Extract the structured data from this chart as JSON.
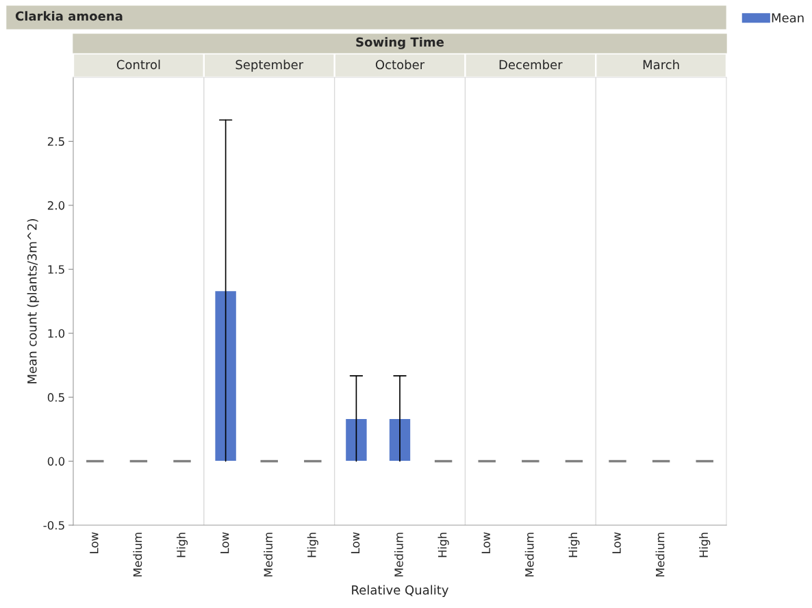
{
  "chart_data": {
    "type": "bar",
    "title": "Clarkia amoena",
    "subtitle": "Sowing Time",
    "annotations": [
      "Control",
      "September",
      "October",
      "December",
      "March"
    ],
    "xlabel": "Relative Quality",
    "ylabel": "Mean count (plants/3m^2)",
    "categories": [
      "Low",
      "Medium",
      "High",
      "Low",
      "Medium",
      "High",
      "Low",
      "Medium",
      "High",
      "Low",
      "Medium",
      "High",
      "Low",
      "Medium",
      "High"
    ],
    "series": [
      {
        "name": "Mean",
        "color": "#5377c9",
        "colors": [
          "#808080",
          "#808080",
          "#808080",
          "#5377c9",
          "#808080",
          "#808080",
          "#5377c9",
          "#5377c9",
          "#808080",
          "#808080",
          "#808080",
          "#808080",
          "#808080",
          "#808080",
          "#808080"
        ],
        "values": [
          0,
          0,
          0,
          1.333,
          0,
          0,
          0.333,
          0.333,
          0,
          0,
          0,
          0,
          0,
          0,
          0
        ],
        "errors": [
          null,
          null,
          null,
          [
            0,
            2.667
          ],
          null,
          null,
          [
            0,
            0.667
          ],
          [
            0,
            0.667
          ],
          null,
          null,
          null,
          null,
          null,
          null,
          null
        ]
      }
    ],
    "ylim": [
      -0.5,
      3.0
    ],
    "yticks": [
      {
        "value": -0.5,
        "label": "-0.5"
      },
      {
        "value": 0,
        "label": "0.0"
      },
      {
        "value": 0.5,
        "label": "0.5"
      },
      {
        "value": 1,
        "label": "1.0"
      },
      {
        "value": 1.5,
        "label": "1.5"
      },
      {
        "value": 2,
        "label": "2.0"
      },
      {
        "value": 2.5,
        "label": "2.5"
      }
    ],
    "grid": false,
    "legend": "top right"
  }
}
